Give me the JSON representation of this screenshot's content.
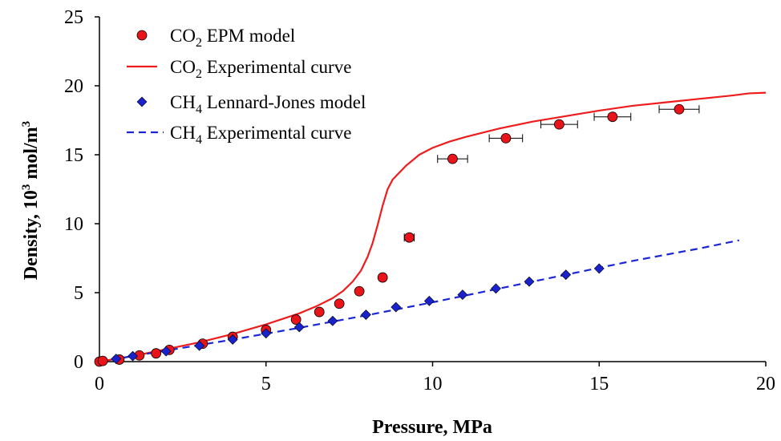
{
  "chart_data": {
    "type": "scatter",
    "xlabel": "Pressure, MPa",
    "ylabel": {
      "prefix": "Density, 10",
      "exp1": "3",
      "middle": " mol/m",
      "exp2": "3"
    },
    "xlim": [
      0,
      20
    ],
    "ylim": [
      0,
      25
    ],
    "x_ticks": [
      0,
      5,
      10,
      15,
      20
    ],
    "y_ticks": [
      0,
      5,
      10,
      15,
      20,
      25
    ],
    "grid": false,
    "legend_position": "top-left",
    "legend": [
      {
        "marker": "circle",
        "parts": [
          {
            "t": "CO"
          },
          {
            "sub": "2"
          },
          {
            "t": " EPM model"
          }
        ]
      },
      {
        "marker": "solid-line",
        "parts": [
          {
            "t": "CO"
          },
          {
            "sub": "2"
          },
          {
            "t": " Experimental curve"
          }
        ]
      },
      {
        "marker": "diamond",
        "parts": [
          {
            "t": "CH"
          },
          {
            "sub": "4"
          },
          {
            "t": " Lennard-Jones model"
          }
        ]
      },
      {
        "marker": "dashed-line",
        "parts": [
          {
            "t": "CH"
          },
          {
            "sub": "4"
          },
          {
            "t": " Experimental curve"
          }
        ]
      }
    ],
    "colors": {
      "co2": "#ee1c1c",
      "co2_marker": "#e8141a",
      "ch4": "#1a26d4",
      "ch4_marker": "#1a22cc"
    },
    "series": [
      {
        "kind": "points",
        "marker": "circle",
        "points": [
          {
            "x": 0.0,
            "y": 0.0
          },
          {
            "x": 0.1,
            "y": 0.05
          },
          {
            "x": 0.6,
            "y": 0.15
          },
          {
            "x": 1.2,
            "y": 0.45
          },
          {
            "x": 1.7,
            "y": 0.6
          },
          {
            "x": 2.1,
            "y": 0.85
          },
          {
            "x": 3.1,
            "y": 1.3
          },
          {
            "x": 4.0,
            "y": 1.8
          },
          {
            "x": 5.0,
            "y": 2.3
          },
          {
            "x": 5.9,
            "y": 3.05
          },
          {
            "x": 6.6,
            "y": 3.6
          },
          {
            "x": 7.2,
            "y": 4.2
          },
          {
            "x": 7.8,
            "y": 5.1
          },
          {
            "x": 8.5,
            "y": 6.1
          },
          {
            "x": 9.3,
            "y": 9.0,
            "xerr": 0.15
          },
          {
            "x": 10.6,
            "y": 14.7,
            "xerr": 0.45
          },
          {
            "x": 12.2,
            "y": 16.2,
            "xerr": 0.5
          },
          {
            "x": 13.8,
            "y": 17.2,
            "xerr": 0.55
          },
          {
            "x": 15.4,
            "y": 17.75,
            "xerr": 0.55
          },
          {
            "x": 17.4,
            "y": 18.3,
            "xerr": 0.6
          }
        ]
      },
      {
        "kind": "line",
        "style": "solid",
        "points": [
          [
            0,
            0
          ],
          [
            1,
            0.4
          ],
          [
            2,
            0.9
          ],
          [
            3,
            1.4
          ],
          [
            4,
            2.0
          ],
          [
            5,
            2.7
          ],
          [
            6,
            3.5
          ],
          [
            6.5,
            4.0
          ],
          [
            7,
            4.6
          ],
          [
            7.3,
            5.1
          ],
          [
            7.6,
            5.8
          ],
          [
            7.85,
            6.6
          ],
          [
            8.05,
            7.6
          ],
          [
            8.2,
            8.6
          ],
          [
            8.35,
            9.9
          ],
          [
            8.5,
            11.3
          ],
          [
            8.65,
            12.5
          ],
          [
            8.8,
            13.2
          ],
          [
            9.2,
            14.2
          ],
          [
            9.6,
            15.0
          ],
          [
            10,
            15.5
          ],
          [
            10.5,
            15.95
          ],
          [
            11,
            16.3
          ],
          [
            12,
            16.9
          ],
          [
            13,
            17.4
          ],
          [
            14,
            17.8
          ],
          [
            15,
            18.2
          ],
          [
            16,
            18.55
          ],
          [
            17,
            18.8
          ],
          [
            18,
            19.05
          ],
          [
            19,
            19.3
          ],
          [
            19.5,
            19.45
          ],
          [
            20,
            19.5
          ]
        ]
      },
      {
        "kind": "points",
        "marker": "diamond",
        "points": [
          {
            "x": 0.5,
            "y": 0.2
          },
          {
            "x": 1.0,
            "y": 0.4
          },
          {
            "x": 2.0,
            "y": 0.75
          },
          {
            "x": 3.0,
            "y": 1.15
          },
          {
            "x": 4.0,
            "y": 1.6
          },
          {
            "x": 5.0,
            "y": 2.05
          },
          {
            "x": 6.0,
            "y": 2.5
          },
          {
            "x": 7.0,
            "y": 2.95
          },
          {
            "x": 8.0,
            "y": 3.4
          },
          {
            "x": 8.9,
            "y": 3.95
          },
          {
            "x": 9.9,
            "y": 4.4
          },
          {
            "x": 10.9,
            "y": 4.85
          },
          {
            "x": 11.9,
            "y": 5.3
          },
          {
            "x": 12.9,
            "y": 5.8
          },
          {
            "x": 14.0,
            "y": 6.3
          },
          {
            "x": 15.0,
            "y": 6.75
          }
        ]
      },
      {
        "kind": "line",
        "style": "dashed",
        "points": [
          [
            0,
            0
          ],
          [
            2,
            0.8
          ],
          [
            4,
            1.6
          ],
          [
            6,
            2.45
          ],
          [
            8,
            3.35
          ],
          [
            10,
            4.3
          ],
          [
            12,
            5.3
          ],
          [
            14,
            6.3
          ],
          [
            16,
            7.3
          ],
          [
            18,
            8.2
          ],
          [
            19.2,
            8.8
          ]
        ]
      }
    ]
  }
}
